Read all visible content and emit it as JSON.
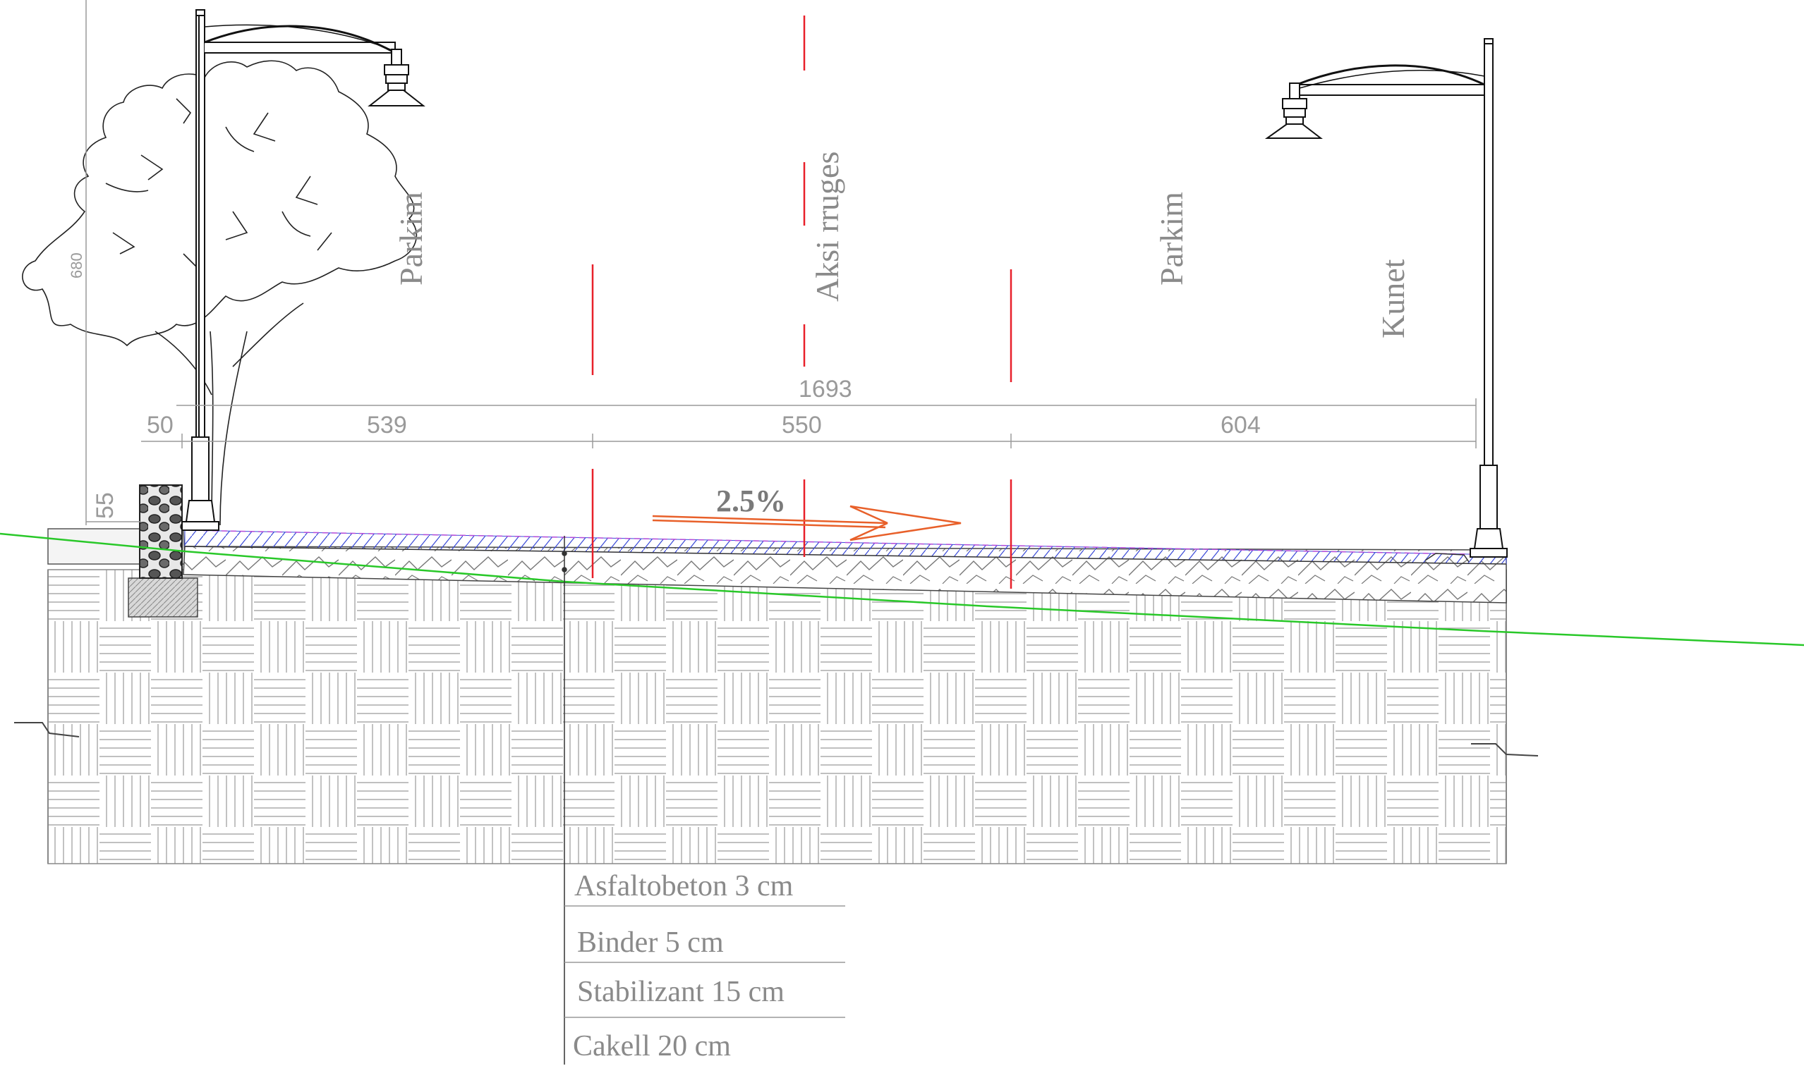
{
  "labels": {
    "parkim_left": "Parkim",
    "axis": "Aksi rruges",
    "parkim_right": "Parkim",
    "kunet": "Kunet",
    "slope": "2.5%"
  },
  "dimensions": {
    "total": "1693",
    "left_margin": "50",
    "seg_left": "539",
    "seg_mid": "550",
    "seg_right": "604",
    "curb_height": "55",
    "left_vertical": "680"
  },
  "layers": [
    "Asfaltobeton 3 cm",
    "Binder 5 cm",
    "Stabilizant 15 cm",
    "Cakell 20 cm"
  ],
  "colors": {
    "axis_line": "#e8202a",
    "slope_arrow": "#e8602a",
    "ground_line": "#29c829",
    "drawing": "#222222",
    "dim_gray": "#9a9a9a",
    "hatch_blue": "#3a4ad8"
  }
}
